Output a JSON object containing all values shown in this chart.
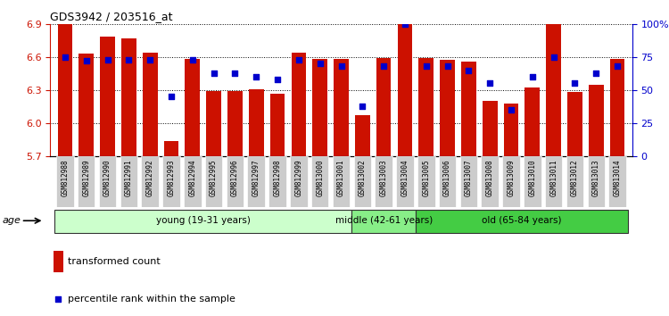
{
  "title": "GDS3942 / 203516_at",
  "samples": [
    "GSM812988",
    "GSM812989",
    "GSM812990",
    "GSM812991",
    "GSM812992",
    "GSM812993",
    "GSM812994",
    "GSM812995",
    "GSM812996",
    "GSM812997",
    "GSM812998",
    "GSM812999",
    "GSM813000",
    "GSM813001",
    "GSM813002",
    "GSM813003",
    "GSM813004",
    "GSM813005",
    "GSM813006",
    "GSM813007",
    "GSM813008",
    "GSM813009",
    "GSM813010",
    "GSM813011",
    "GSM813012",
    "GSM813013",
    "GSM813014"
  ],
  "bar_values": [
    6.9,
    6.63,
    6.78,
    6.77,
    6.64,
    5.84,
    6.58,
    6.29,
    6.29,
    6.31,
    6.27,
    6.64,
    6.58,
    6.58,
    6.07,
    6.59,
    6.9,
    6.59,
    6.57,
    6.56,
    6.2,
    6.18,
    6.32,
    6.9,
    6.28,
    6.35,
    6.58
  ],
  "percentile_values": [
    75,
    72,
    73,
    73,
    73,
    45,
    73,
    63,
    63,
    60,
    58,
    73,
    70,
    68,
    38,
    68,
    100,
    68,
    68,
    65,
    55,
    35,
    60,
    75,
    55,
    63,
    68
  ],
  "ymin": 5.7,
  "ymax": 6.9,
  "yticks": [
    5.7,
    6.0,
    6.3,
    6.6,
    6.9
  ],
  "bar_color": "#cc1100",
  "dot_color": "#0000cc",
  "groups": [
    {
      "label": "young (19-31 years)",
      "start": 0,
      "end": 14,
      "color": "#ccffcc"
    },
    {
      "label": "middle (42-61 years)",
      "start": 14,
      "end": 17,
      "color": "#88ee88"
    },
    {
      "label": "old (65-84 years)",
      "start": 17,
      "end": 27,
      "color": "#44cc44"
    }
  ],
  "right_yticks": [
    0,
    25,
    50,
    75,
    100
  ],
  "right_yticklabels": [
    "0",
    "25",
    "50",
    "75",
    "100%"
  ],
  "legend_bar_label": "transformed count",
  "legend_dot_label": "percentile rank within the sample",
  "age_label": "age",
  "xtick_bg": "#cccccc"
}
